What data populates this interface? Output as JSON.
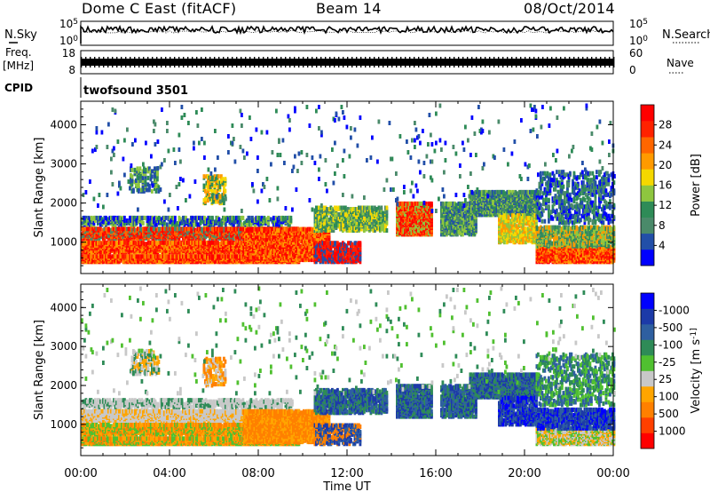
{
  "header": {
    "site": "Dome C East (fitACF)",
    "beam": "Beam 14",
    "date": "08/Oct/2014"
  },
  "left_labels": {
    "nsky": "N.Sky",
    "freq": "Freq.",
    "freq_unit": "[MHz]",
    "cpid": "CPID"
  },
  "right_labels": {
    "nsearch": "N.Search",
    "nave": "Nave"
  },
  "cpid_text": "twofsound 3501",
  "colors": {
    "power": [
      "#0000ff",
      "#224fa8",
      "#4a8a6a",
      "#2e8b57",
      "#8ec63f",
      "#f5d800",
      "#ff9a00",
      "#ff6600",
      "#ff2200",
      "#ff0000"
    ],
    "velocity": [
      "#ff0000",
      "#ff4000",
      "#ff8000",
      "#ffa500",
      "#c8c8c8",
      "#50c030",
      "#2e8b57",
      "#2e5fa0",
      "#1c3aa8",
      "#0000ff"
    ]
  },
  "chart_data": [
    {
      "type": "line",
      "name": "noise",
      "left_ticks": [
        "10^5",
        "10^0"
      ],
      "right_ticks": [
        "10^5",
        "10^0"
      ]
    },
    {
      "type": "line",
      "name": "frequency",
      "left_ticks": [
        "18",
        "8"
      ],
      "right_ticks": [
        "60",
        "0"
      ]
    },
    {
      "type": "heatmap",
      "name": "power",
      "ylabel": "Slant Range [km]",
      "yticks": [
        1000,
        2000,
        3000,
        4000
      ],
      "ylim": [
        200,
        4600
      ],
      "xlim": [
        0,
        24
      ],
      "colorbar_label": "Power [dB]",
      "colorbar_ticks": [
        "4",
        "8",
        "12",
        "16",
        "20",
        "24",
        "28"
      ]
    },
    {
      "type": "heatmap",
      "name": "velocity",
      "ylabel": "Slant Range [km]",
      "yticks": [
        1000,
        2000,
        3000,
        4000
      ],
      "ylim": [
        200,
        4600
      ],
      "xlim": [
        0,
        24
      ],
      "xlabel": "Time UT",
      "xticks": [
        "00:00",
        "04:00",
        "08:00",
        "12:00",
        "16:00",
        "20:00",
        "00:00"
      ],
      "colorbar_label": "Velocity [m s^-1]",
      "colorbar_ticks": [
        "1000",
        "500",
        "100",
        "25",
        "-25",
        "-100",
        "-500",
        "-1000"
      ]
    }
  ]
}
